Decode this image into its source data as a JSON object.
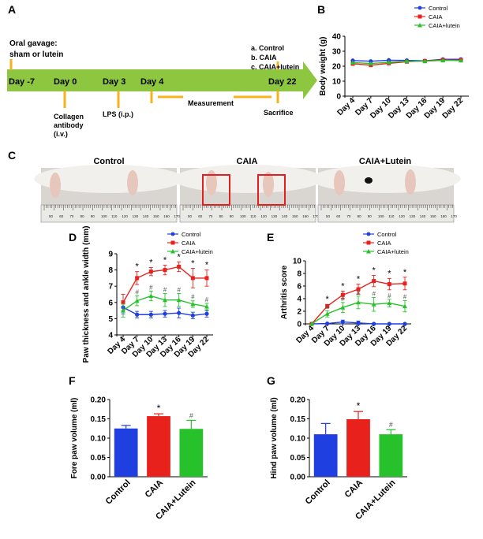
{
  "panel_letters": {
    "a": "A",
    "b": "B",
    "c": "C",
    "d": "D",
    "e": "E",
    "f": "F",
    "g": "G"
  },
  "timeline": {
    "oral_gavage": [
      "Oral gavage:",
      "sham or lutein"
    ],
    "days": [
      "Day -7",
      "Day 0",
      "Day 3",
      "Day 4",
      "Day 22"
    ],
    "collagen": [
      "Collagen",
      "antibody",
      "(i.v.)"
    ],
    "lps": "LPS (i.p.)",
    "measurement": "Measurement",
    "sacrifice": "Sacrifice",
    "groups": [
      "a. Control",
      "b. CAIA",
      "c. CAIA+lutein"
    ],
    "colors": {
      "arrow": "#8dc63f",
      "marker": "#f5b21b"
    }
  },
  "photos": {
    "labels": [
      "Control",
      "CAIA",
      "CAIA+Lutein"
    ],
    "ruler_marks": [
      "50",
      "60",
      "70",
      "80",
      "90",
      "100",
      "110",
      "120",
      "130",
      "140",
      "150",
      "160",
      "170"
    ]
  },
  "colors": {
    "control": "#1f3fe0",
    "caia": "#e8211d",
    "lutein": "#27c22b"
  },
  "chart_data": [
    {
      "id": "B",
      "type": "line",
      "ylabel": "Body weight (g)",
      "x": [
        "Day 4",
        "Day 7",
        "Day 10",
        "Day 13",
        "Day 16",
        "Day 19",
        "Day 22"
      ],
      "ylim": [
        0,
        40
      ],
      "yticks": [
        0,
        10,
        20,
        30,
        40
      ],
      "series": [
        {
          "name": "Control",
          "values": [
            23.8,
            23.3,
            24.0,
            23.9,
            23.6,
            24.6,
            24.6
          ]
        },
        {
          "name": "CAIA",
          "values": [
            21.6,
            20.7,
            21.9,
            23.0,
            23.5,
            24.2,
            24.1
          ]
        },
        {
          "name": "CAIA+lutein",
          "values": [
            22.4,
            21.8,
            22.6,
            23.3,
            23.3,
            23.9,
            23.8
          ]
        }
      ],
      "legend": "top-right"
    },
    {
      "id": "D",
      "type": "line",
      "ylabel": "Paw thickness and ankle width (mm)",
      "x": [
        "Day 4",
        "Day 7",
        "Day 10",
        "Day 13",
        "Day 16",
        "Day 19",
        "Day 22"
      ],
      "ylim": [
        4,
        9
      ],
      "yticks": [
        4,
        5,
        6,
        7,
        8,
        9
      ],
      "series": [
        {
          "name": "Control",
          "values": [
            5.7,
            5.25,
            5.25,
            5.3,
            5.35,
            5.2,
            5.3
          ],
          "err": [
            0.4,
            0.2,
            0.2,
            0.2,
            0.3,
            0.2,
            0.2
          ]
        },
        {
          "name": "CAIA",
          "values": [
            6.0,
            7.5,
            7.9,
            8.0,
            8.2,
            7.5,
            7.5
          ],
          "err": [
            0.5,
            0.4,
            0.25,
            0.3,
            0.3,
            0.6,
            0.5
          ]
        },
        {
          "name": "CAIA+lutein",
          "values": [
            5.5,
            6.1,
            6.4,
            6.15,
            6.15,
            5.9,
            5.75
          ],
          "err": [
            0.4,
            0.3,
            0.3,
            0.4,
            0.4,
            0.2,
            0.2
          ]
        }
      ],
      "annotations": {
        "star": "*",
        "hash": "#"
      },
      "legend": "top-right"
    },
    {
      "id": "E",
      "type": "line",
      "ylabel": "Arthritis score",
      "x": [
        "Day 4",
        "Day 7",
        "Day 10",
        "Day 13",
        "Day 16",
        "Day 19",
        "Day 22"
      ],
      "ylim": [
        0,
        10
      ],
      "yticks": [
        0,
        2,
        4,
        6,
        8,
        10
      ],
      "series": [
        {
          "name": "Control",
          "values": [
            0,
            0.05,
            0.3,
            0.15,
            0,
            0,
            0
          ],
          "err": [
            0,
            0,
            0.3,
            0.3,
            0,
            0,
            0
          ]
        },
        {
          "name": "CAIA",
          "values": [
            0,
            2.8,
            4.6,
            5.5,
            6.8,
            6.3,
            6.4
          ],
          "err": [
            0,
            0.3,
            0.6,
            0.8,
            0.9,
            0.9,
            1.0
          ]
        },
        {
          "name": "CAIA+lutein",
          "values": [
            0,
            1.6,
            2.6,
            3.4,
            3.1,
            3.3,
            2.8
          ],
          "err": [
            0,
            0.5,
            0.8,
            1.0,
            1.1,
            0.6,
            0.9
          ]
        }
      ],
      "annotations": {
        "star": "*",
        "hash": "#"
      },
      "legend": "top-right"
    },
    {
      "id": "F",
      "type": "bar",
      "ylabel": "Fore paw volume (ml)",
      "categories": [
        "Control",
        "CAIA",
        "CAIA+Lutein"
      ],
      "values": [
        0.125,
        0.157,
        0.124
      ],
      "err": [
        0.008,
        0.006,
        0.022
      ],
      "ylim": [
        0,
        0.2
      ],
      "yticks": [
        "0.00",
        "0.05",
        "0.10",
        "0.15",
        "0.20"
      ],
      "marks": [
        "",
        "*",
        "#"
      ]
    },
    {
      "id": "G",
      "type": "bar",
      "ylabel": "Hind paw volume (ml)",
      "categories": [
        "Control",
        "CAIA",
        "CAIA+Lutein"
      ],
      "values": [
        0.11,
        0.149,
        0.11
      ],
      "err": [
        0.028,
        0.02,
        0.012
      ],
      "ylim": [
        0,
        0.2
      ],
      "yticks": [
        "0.00",
        "0.05",
        "0.10",
        "0.15",
        "0.20"
      ],
      "marks": [
        "",
        "*",
        "#"
      ]
    }
  ]
}
